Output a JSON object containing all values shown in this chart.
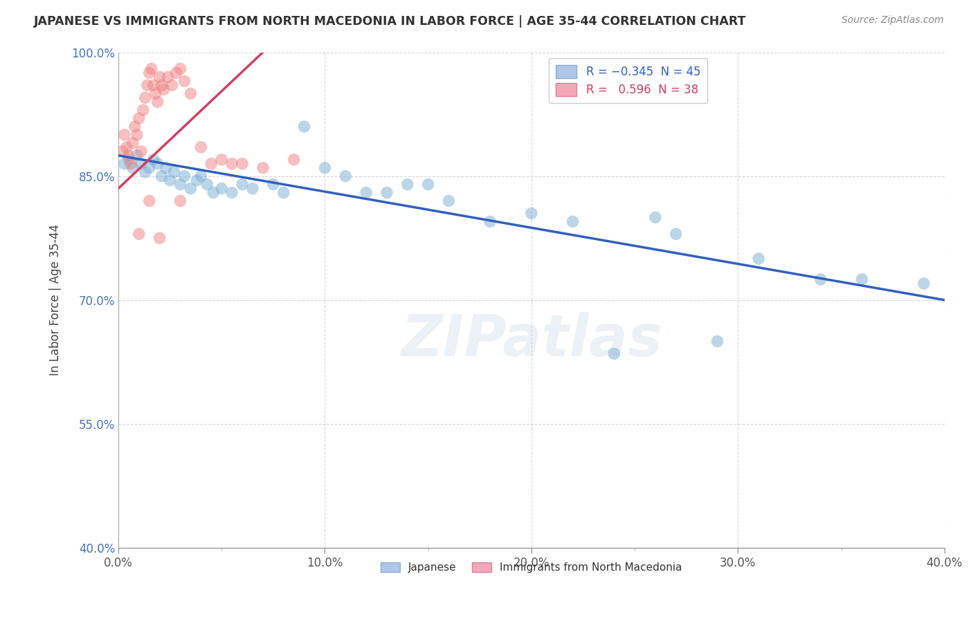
{
  "title": "JAPANESE VS IMMIGRANTS FROM NORTH MACEDONIA IN LABOR FORCE | AGE 35-44 CORRELATION CHART",
  "source": "Source: ZipAtlas.com",
  "ylabel": "In Labor Force | Age 35-44",
  "xlabel": "",
  "xlim": [
    0.0,
    40.0
  ],
  "ylim": [
    40.0,
    100.0
  ],
  "xticks": [
    0.0,
    10.0,
    20.0,
    30.0,
    40.0
  ],
  "yticks": [
    40.0,
    55.0,
    70.0,
    85.0,
    100.0
  ],
  "japanese_color": "#7bafd4",
  "macedonian_color": "#f08080",
  "trendline_japanese_color": "#3060c0",
  "trendline_macedonian_color": "#d04060",
  "watermark": "ZIPatlas",
  "jp_trendline_x0": 0.0,
  "jp_trendline_y0": 87.5,
  "jp_trendline_x1": 40.0,
  "jp_trendline_y1": 70.0,
  "mk_trendline_x0": 0.0,
  "mk_trendline_y0": 83.5,
  "mk_trendline_x1": 7.0,
  "mk_trendline_y1": 100.0,
  "japanese_points": [
    [
      0.3,
      86.5
    ],
    [
      0.5,
      87.0
    ],
    [
      0.7,
      86.0
    ],
    [
      0.9,
      87.5
    ],
    [
      1.1,
      86.5
    ],
    [
      1.3,
      85.5
    ],
    [
      1.5,
      86.0
    ],
    [
      1.7,
      87.0
    ],
    [
      1.9,
      86.5
    ],
    [
      2.1,
      85.0
    ],
    [
      2.3,
      86.0
    ],
    [
      2.5,
      84.5
    ],
    [
      2.7,
      85.5
    ],
    [
      3.0,
      84.0
    ],
    [
      3.2,
      85.0
    ],
    [
      3.5,
      83.5
    ],
    [
      3.8,
      84.5
    ],
    [
      4.0,
      85.0
    ],
    [
      4.3,
      84.0
    ],
    [
      4.6,
      83.0
    ],
    [
      5.0,
      83.5
    ],
    [
      5.5,
      83.0
    ],
    [
      6.0,
      84.0
    ],
    [
      6.5,
      83.5
    ],
    [
      7.5,
      84.0
    ],
    [
      8.0,
      83.0
    ],
    [
      9.0,
      91.0
    ],
    [
      10.0,
      86.0
    ],
    [
      11.0,
      85.0
    ],
    [
      12.0,
      83.0
    ],
    [
      13.0,
      83.0
    ],
    [
      14.0,
      84.0
    ],
    [
      15.0,
      84.0
    ],
    [
      16.0,
      82.0
    ],
    [
      18.0,
      79.5
    ],
    [
      20.0,
      80.5
    ],
    [
      22.0,
      79.5
    ],
    [
      24.0,
      63.5
    ],
    [
      26.0,
      80.0
    ],
    [
      27.0,
      78.0
    ],
    [
      29.0,
      65.0
    ],
    [
      31.0,
      75.0
    ],
    [
      34.0,
      72.5
    ],
    [
      36.0,
      72.5
    ],
    [
      39.0,
      72.0
    ]
  ],
  "macedonian_points": [
    [
      0.2,
      88.0
    ],
    [
      0.3,
      90.0
    ],
    [
      0.4,
      88.5
    ],
    [
      0.5,
      87.5
    ],
    [
      0.6,
      86.5
    ],
    [
      0.7,
      89.0
    ],
    [
      0.8,
      91.0
    ],
    [
      0.9,
      90.0
    ],
    [
      1.0,
      92.0
    ],
    [
      1.1,
      88.0
    ],
    [
      1.2,
      93.0
    ],
    [
      1.3,
      94.5
    ],
    [
      1.4,
      96.0
    ],
    [
      1.5,
      97.5
    ],
    [
      1.6,
      98.0
    ],
    [
      1.7,
      96.0
    ],
    [
      1.8,
      95.0
    ],
    [
      1.9,
      94.0
    ],
    [
      2.0,
      97.0
    ],
    [
      2.1,
      96.0
    ],
    [
      2.2,
      95.5
    ],
    [
      2.4,
      97.0
    ],
    [
      2.6,
      96.0
    ],
    [
      2.8,
      97.5
    ],
    [
      3.0,
      98.0
    ],
    [
      3.2,
      96.5
    ],
    [
      3.5,
      95.0
    ],
    [
      4.0,
      88.5
    ],
    [
      4.5,
      86.5
    ],
    [
      5.0,
      87.0
    ],
    [
      5.5,
      86.5
    ],
    [
      6.0,
      86.5
    ],
    [
      7.0,
      86.0
    ],
    [
      8.5,
      87.0
    ],
    [
      1.0,
      78.0
    ],
    [
      2.0,
      77.5
    ],
    [
      1.5,
      82.0
    ],
    [
      3.0,
      82.0
    ]
  ]
}
